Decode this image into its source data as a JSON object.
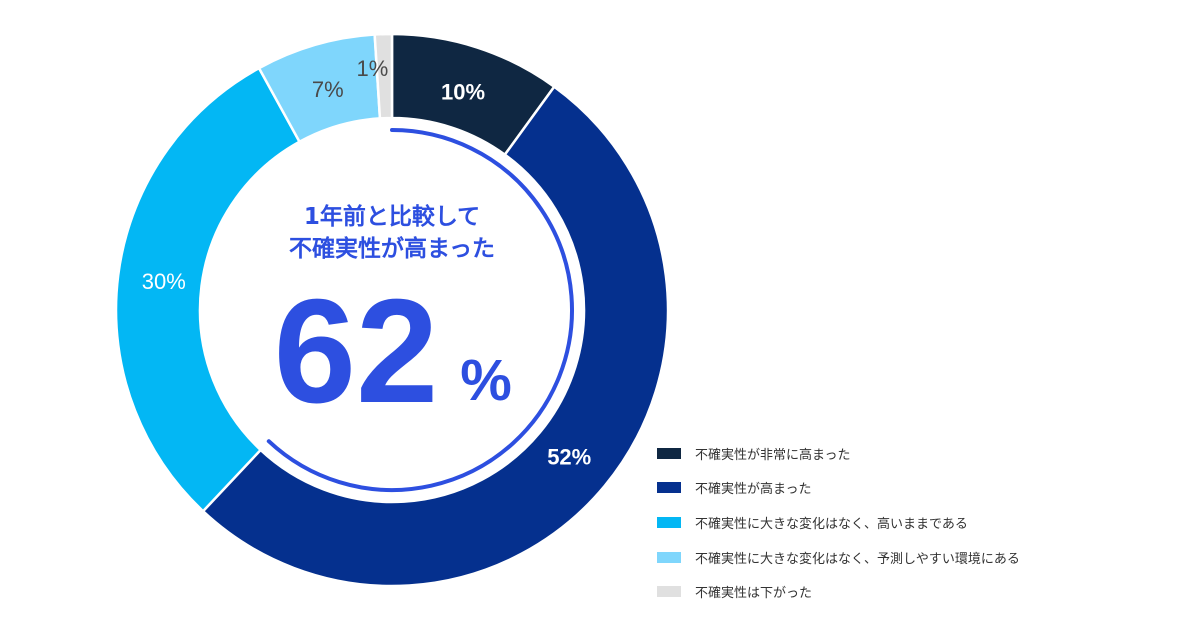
{
  "chart_data": {
    "type": "pie",
    "donut": true,
    "categories": [
      "不確実性が非常に高まった",
      "不確実性が高まった",
      "不確実性に大きな変化はなく、高いままである",
      "不確実性に大きな変化はなく、予測しやすい環境にある",
      "不確実性は下がった"
    ],
    "values": [
      10,
      52,
      30,
      7,
      1
    ],
    "labels": [
      "10%",
      "52%",
      "30%",
      "7%",
      "1%"
    ],
    "colors": [
      "#0f2742",
      "#05308e",
      "#03b7f4",
      "#7fd6fc",
      "#e0e0e0"
    ],
    "label_colors": [
      "#ffffff",
      "#ffffff",
      "#ffffff",
      "#4a4a4a",
      "#4a4a4a"
    ],
    "legend_position": "bottom-right"
  },
  "center": {
    "line1": "1年前と比較して",
    "line2": "不確実性が高まった",
    "value": "62",
    "unit": "%",
    "color": "#2d4fe0"
  }
}
